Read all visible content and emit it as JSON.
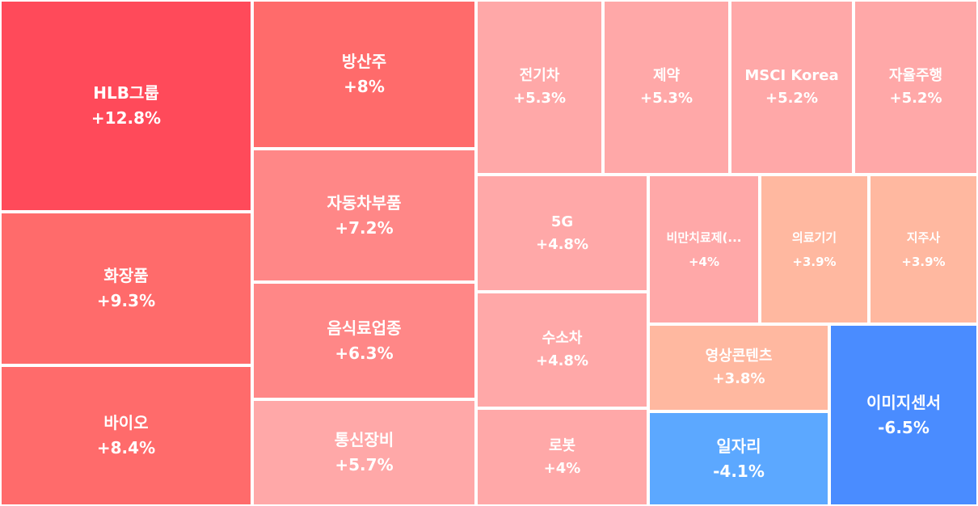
{
  "chart_data": {
    "type": "treemap",
    "colors": {
      "up_strong": "#ff4a5a",
      "up_high": "#ff6b6b",
      "up_mid": "#ff8787",
      "up_low": "#ffa8a8",
      "up_light": "#ffb8a0",
      "down_mid": "#5ca8ff",
      "down_strong": "#4a8cff"
    },
    "items": [
      {
        "label": "HLB그룹",
        "value": "+12.8%",
        "change": 12.8,
        "color": "up_strong"
      },
      {
        "label": "화장품",
        "value": "+9.3%",
        "change": 9.3,
        "color": "up_high"
      },
      {
        "label": "바이오",
        "value": "+8.4%",
        "change": 8.4,
        "color": "up_high"
      },
      {
        "label": "방산주",
        "value": "+8%",
        "change": 8.0,
        "color": "up_high"
      },
      {
        "label": "자동차부품",
        "value": "+7.2%",
        "change": 7.2,
        "color": "up_mid"
      },
      {
        "label": "음식료업종",
        "value": "+6.3%",
        "change": 6.3,
        "color": "up_mid"
      },
      {
        "label": "통신장비",
        "value": "+5.7%",
        "change": 5.7,
        "color": "up_low"
      },
      {
        "label": "전기차",
        "value": "+5.3%",
        "change": 5.3,
        "color": "up_low"
      },
      {
        "label": "제약",
        "value": "+5.3%",
        "change": 5.3,
        "color": "up_low"
      },
      {
        "label": "MSCI Korea",
        "value": "+5.2%",
        "change": 5.2,
        "color": "up_low"
      },
      {
        "label": "자율주행",
        "value": "+5.2%",
        "change": 5.2,
        "color": "up_low"
      },
      {
        "label": "5G",
        "value": "+4.8%",
        "change": 4.8,
        "color": "up_low"
      },
      {
        "label": "수소차",
        "value": "+4.8%",
        "change": 4.8,
        "color": "up_low"
      },
      {
        "label": "로봇",
        "value": "+4%",
        "change": 4.0,
        "color": "up_low"
      },
      {
        "label": "비만치료제(...",
        "value": "+4%",
        "change": 4.0,
        "color": "up_low"
      },
      {
        "label": "의료기기",
        "value": "+3.9%",
        "change": 3.9,
        "color": "up_light"
      },
      {
        "label": "지주사",
        "value": "+3.9%",
        "change": 3.9,
        "color": "up_light"
      },
      {
        "label": "영상콘텐츠",
        "value": "+3.8%",
        "change": 3.8,
        "color": "up_light"
      },
      {
        "label": "일자리",
        "value": "-4.1%",
        "change": -4.1,
        "color": "down_mid"
      },
      {
        "label": "이미지센서",
        "value": "-6.5%",
        "change": -6.5,
        "color": "down_strong"
      }
    ]
  }
}
